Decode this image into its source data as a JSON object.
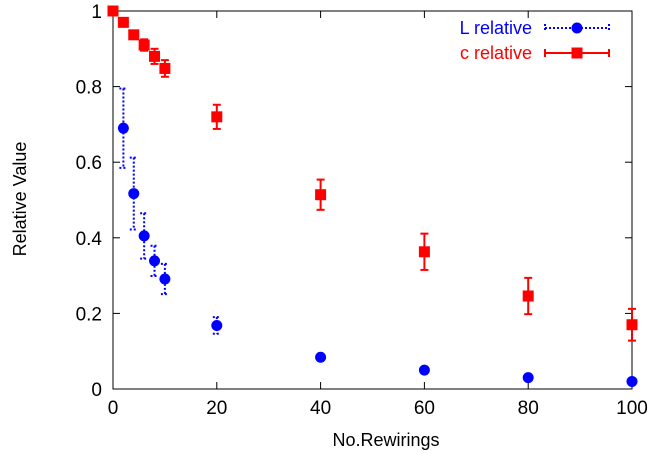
{
  "chart_data": {
    "type": "scatter",
    "title": "",
    "xlabel": "No.Rewirings",
    "ylabel": "Relative Value",
    "xlim": [
      0,
      100
    ],
    "ylim": [
      0,
      1
    ],
    "x_ticks": [
      "0",
      "20",
      "40",
      "60",
      "80",
      "100"
    ],
    "x_tick_values": [
      0,
      20,
      40,
      60,
      80,
      100
    ],
    "y_ticks": [
      "0",
      "0.2",
      "0.4",
      "0.6",
      "0.8",
      "1"
    ],
    "y_tick_values": [
      0,
      0.2,
      0.4,
      0.6,
      0.8,
      1
    ],
    "grid": false,
    "legend_position": "top-right",
    "series": [
      {
        "name": "L relative",
        "color": "#0000ff",
        "marker": "circle",
        "error_style": "dotted",
        "points": [
          {
            "x": 0,
            "y": 1.0,
            "err": 0.0
          },
          {
            "x": 2,
            "y": 0.69,
            "err": 0.105
          },
          {
            "x": 4,
            "y": 0.517,
            "err": 0.095
          },
          {
            "x": 6,
            "y": 0.405,
            "err": 0.06
          },
          {
            "x": 8,
            "y": 0.339,
            "err": 0.04
          },
          {
            "x": 10,
            "y": 0.291,
            "err": 0.04
          },
          {
            "x": 20,
            "y": 0.168,
            "err": 0.022
          },
          {
            "x": 40,
            "y": 0.084,
            "err": 0.005
          },
          {
            "x": 60,
            "y": 0.05,
            "err": 0.004
          },
          {
            "x": 80,
            "y": 0.03,
            "err": 0.003
          },
          {
            "x": 100,
            "y": 0.02,
            "err": 0.002
          }
        ]
      },
      {
        "name": "c relative",
        "color": "#ff0000",
        "marker": "square",
        "error_style": "solid",
        "points": [
          {
            "x": 0,
            "y": 1.0,
            "err": 0.0
          },
          {
            "x": 2,
            "y": 0.97,
            "err": 0.008
          },
          {
            "x": 4,
            "y": 0.937,
            "err": 0.01
          },
          {
            "x": 6,
            "y": 0.91,
            "err": 0.015
          },
          {
            "x": 8,
            "y": 0.88,
            "err": 0.02
          },
          {
            "x": 10,
            "y": 0.848,
            "err": 0.022
          },
          {
            "x": 20,
            "y": 0.72,
            "err": 0.032
          },
          {
            "x": 40,
            "y": 0.514,
            "err": 0.04
          },
          {
            "x": 60,
            "y": 0.363,
            "err": 0.048
          },
          {
            "x": 80,
            "y": 0.246,
            "err": 0.048
          },
          {
            "x": 100,
            "y": 0.17,
            "err": 0.042
          }
        ]
      }
    ]
  }
}
